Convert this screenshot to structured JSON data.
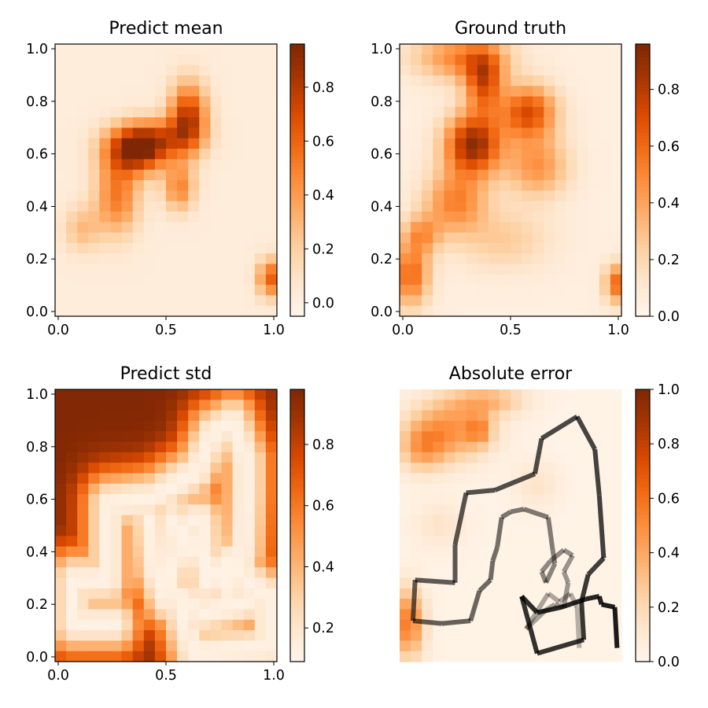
{
  "chart_data": [
    {
      "type": "heatmap",
      "title": "Predict mean",
      "xticks": [
        "0.0",
        "0.5",
        "1.0"
      ],
      "yticks": [
        "0.0",
        "0.2",
        "0.4",
        "0.6",
        "0.8",
        "1.0"
      ],
      "colorbar": {
        "ticks": [
          "0.0",
          "0.2",
          "0.4",
          "0.6",
          "0.8"
        ],
        "range": [
          -0.05,
          0.96
        ]
      },
      "grid": false,
      "colormap": "Oranges",
      "show_axes": true,
      "field": {
        "base": 0.02,
        "blobs": [
          {
            "x": 0.37,
            "y": 0.61,
            "sx": 0.1,
            "sy": 0.06,
            "a": 0.9
          },
          {
            "x": 0.6,
            "y": 0.73,
            "sx": 0.06,
            "sy": 0.09,
            "a": 0.75
          },
          {
            "x": 0.47,
            "y": 0.66,
            "sx": 0.12,
            "sy": 0.05,
            "a": 0.35
          },
          {
            "x": 0.28,
            "y": 0.44,
            "sx": 0.07,
            "sy": 0.1,
            "a": 0.5
          },
          {
            "x": 0.56,
            "y": 0.47,
            "sx": 0.05,
            "sy": 0.06,
            "a": 0.45
          },
          {
            "x": 0.12,
            "y": 0.32,
            "sx": 0.06,
            "sy": 0.06,
            "a": 0.25
          },
          {
            "x": 0.97,
            "y": 0.14,
            "sx": 0.04,
            "sy": 0.05,
            "a": 0.6
          }
        ]
      }
    },
    {
      "type": "heatmap",
      "title": "Ground truth",
      "xticks": [
        "0.0",
        "0.5",
        "1.0"
      ],
      "yticks": [
        "0.0",
        "0.2",
        "0.4",
        "0.6",
        "0.8",
        "1.0"
      ],
      "colorbar": {
        "ticks": [
          "0.0",
          "0.2",
          "0.4",
          "0.6",
          "0.8"
        ],
        "range": [
          0.0,
          0.96
        ]
      },
      "grid": false,
      "colormap": "Oranges",
      "show_axes": true,
      "field": {
        "base": 0.05,
        "blobs": [
          {
            "x": 0.33,
            "y": 0.63,
            "sx": 0.09,
            "sy": 0.08,
            "a": 0.85
          },
          {
            "x": 0.38,
            "y": 0.86,
            "sx": 0.06,
            "sy": 0.08,
            "a": 0.6
          },
          {
            "x": 0.58,
            "y": 0.75,
            "sx": 0.09,
            "sy": 0.07,
            "a": 0.65
          },
          {
            "x": 0.28,
            "y": 0.95,
            "sx": 0.15,
            "sy": 0.06,
            "a": 0.45
          },
          {
            "x": 0.62,
            "y": 0.55,
            "sx": 0.1,
            "sy": 0.08,
            "a": 0.4
          },
          {
            "x": 0.25,
            "y": 0.42,
            "sx": 0.1,
            "sy": 0.08,
            "a": 0.45
          },
          {
            "x": 0.05,
            "y": 0.15,
            "sx": 0.06,
            "sy": 0.08,
            "a": 0.55
          },
          {
            "x": 0.1,
            "y": 0.3,
            "sx": 0.06,
            "sy": 0.05,
            "a": 0.35
          },
          {
            "x": 0.47,
            "y": 0.28,
            "sx": 0.15,
            "sy": 0.08,
            "a": 0.2
          },
          {
            "x": 0.98,
            "y": 0.12,
            "sx": 0.04,
            "sy": 0.05,
            "a": 0.55
          }
        ]
      }
    },
    {
      "type": "heatmap",
      "title": "Predict std",
      "xticks": [
        "0.0",
        "0.5",
        "1.0"
      ],
      "yticks": [
        "0.0",
        "0.2",
        "0.4",
        "0.6",
        "0.8",
        "1.0"
      ],
      "colorbar": {
        "ticks": [
          "0.2",
          "0.4",
          "0.6",
          "0.8"
        ],
        "range": [
          0.09,
          0.98
        ]
      },
      "grid": false,
      "colormap": "Oranges",
      "show_axes": true,
      "field": {
        "mode": "std",
        "high": 0.97,
        "low": 0.12,
        "path": [
          [
            0.27,
            0.14
          ],
          [
            0.08,
            0.14
          ],
          [
            0.08,
            0.3
          ],
          [
            0.24,
            0.3
          ],
          [
            0.24,
            0.58
          ],
          [
            0.44,
            0.6
          ],
          [
            0.64,
            0.7
          ],
          [
            0.71,
            0.84
          ],
          [
            0.8,
            0.88
          ],
          [
            0.86,
            0.74
          ],
          [
            0.86,
            0.61
          ],
          [
            0.85,
            0.42
          ],
          [
            0.83,
            0.32
          ],
          [
            0.96,
            0.24
          ],
          [
            0.96,
            0.05
          ],
          [
            0.62,
            0.03
          ],
          [
            0.55,
            0.24
          ],
          [
            0.67,
            0.18
          ],
          [
            0.77,
            0.2
          ],
          [
            0.9,
            0.23
          ]
        ],
        "path2": [
          [
            0.43,
            0.52
          ],
          [
            0.45,
            0.34
          ],
          [
            0.5,
            0.23
          ],
          [
            0.52,
            0.33
          ],
          [
            0.61,
            0.52
          ],
          [
            0.66,
            0.52
          ],
          [
            0.68,
            0.29
          ],
          [
            0.73,
            0.32
          ],
          [
            0.78,
            0.37
          ],
          [
            0.77,
            0.27
          ],
          [
            0.53,
            0.52
          ],
          [
            0.56,
            0.42
          ]
        ]
      }
    },
    {
      "type": "heatmap",
      "title": "Absolute error",
      "xticks": [],
      "yticks": [],
      "colorbar": {
        "ticks": [
          "0.0",
          "0.2",
          "0.4",
          "0.6",
          "0.8",
          "1.0"
        ],
        "range": [
          0.0,
          1.0
        ]
      },
      "grid": false,
      "colormap": "Oranges",
      "show_axes": false,
      "field": {
        "base": 0.02,
        "blobs": [
          {
            "x": 0.22,
            "y": 0.85,
            "sx": 0.13,
            "sy": 0.08,
            "a": 0.45
          },
          {
            "x": 0.36,
            "y": 0.85,
            "sx": 0.04,
            "sy": 0.04,
            "a": 0.3
          },
          {
            "x": 0.1,
            "y": 0.78,
            "sx": 0.07,
            "sy": 0.06,
            "a": 0.3
          },
          {
            "x": 0.4,
            "y": 0.96,
            "sx": 0.12,
            "sy": 0.04,
            "a": 0.3
          },
          {
            "x": 0.04,
            "y": 0.14,
            "sx": 0.05,
            "sy": 0.09,
            "a": 0.55
          },
          {
            "x": 0.18,
            "y": 0.5,
            "sx": 0.08,
            "sy": 0.06,
            "a": 0.12
          },
          {
            "x": 0.62,
            "y": 0.65,
            "sx": 0.07,
            "sy": 0.06,
            "a": 0.12
          }
        ]
      },
      "trajectory": [
        [
          0.81,
          0.05
        ],
        [
          0.8,
          0.2
        ],
        [
          0.77,
          0.25
        ],
        [
          0.72,
          0.22
        ],
        [
          0.67,
          0.25
        ],
        [
          0.57,
          0.12
        ],
        [
          0.66,
          0.19
        ],
        [
          0.7,
          0.21
        ],
        [
          0.74,
          0.2
        ],
        [
          0.76,
          0.29
        ],
        [
          0.74,
          0.33
        ],
        [
          0.78,
          0.39
        ],
        [
          0.74,
          0.41
        ],
        [
          0.68,
          0.37
        ],
        [
          0.64,
          0.33
        ],
        [
          0.66,
          0.29
        ],
        [
          0.7,
          0.36
        ],
        [
          0.69,
          0.41
        ],
        [
          0.67,
          0.53
        ],
        [
          0.56,
          0.56
        ],
        [
          0.5,
          0.55
        ],
        [
          0.46,
          0.53
        ],
        [
          0.44,
          0.42
        ],
        [
          0.42,
          0.37
        ],
        [
          0.41,
          0.3
        ],
        [
          0.36,
          0.26
        ],
        [
          0.32,
          0.15
        ],
        [
          0.19,
          0.14
        ],
        [
          0.06,
          0.15
        ],
        [
          0.07,
          0.3
        ],
        [
          0.25,
          0.29
        ],
        [
          0.25,
          0.43
        ],
        [
          0.3,
          0.62
        ],
        [
          0.43,
          0.63
        ],
        [
          0.61,
          0.69
        ],
        [
          0.64,
          0.82
        ],
        [
          0.8,
          0.9
        ],
        [
          0.88,
          0.78
        ],
        [
          0.9,
          0.61
        ],
        [
          0.92,
          0.38
        ],
        [
          0.85,
          0.32
        ],
        [
          0.82,
          0.22
        ],
        [
          0.83,
          0.08
        ],
        [
          0.62,
          0.03
        ],
        [
          0.55,
          0.24
        ],
        [
          0.62,
          0.18
        ],
        [
          0.73,
          0.2
        ],
        [
          0.84,
          0.23
        ],
        [
          0.9,
          0.24
        ],
        [
          0.91,
          0.21
        ],
        [
          0.97,
          0.2
        ],
        [
          0.98,
          0.05
        ]
      ]
    }
  ]
}
